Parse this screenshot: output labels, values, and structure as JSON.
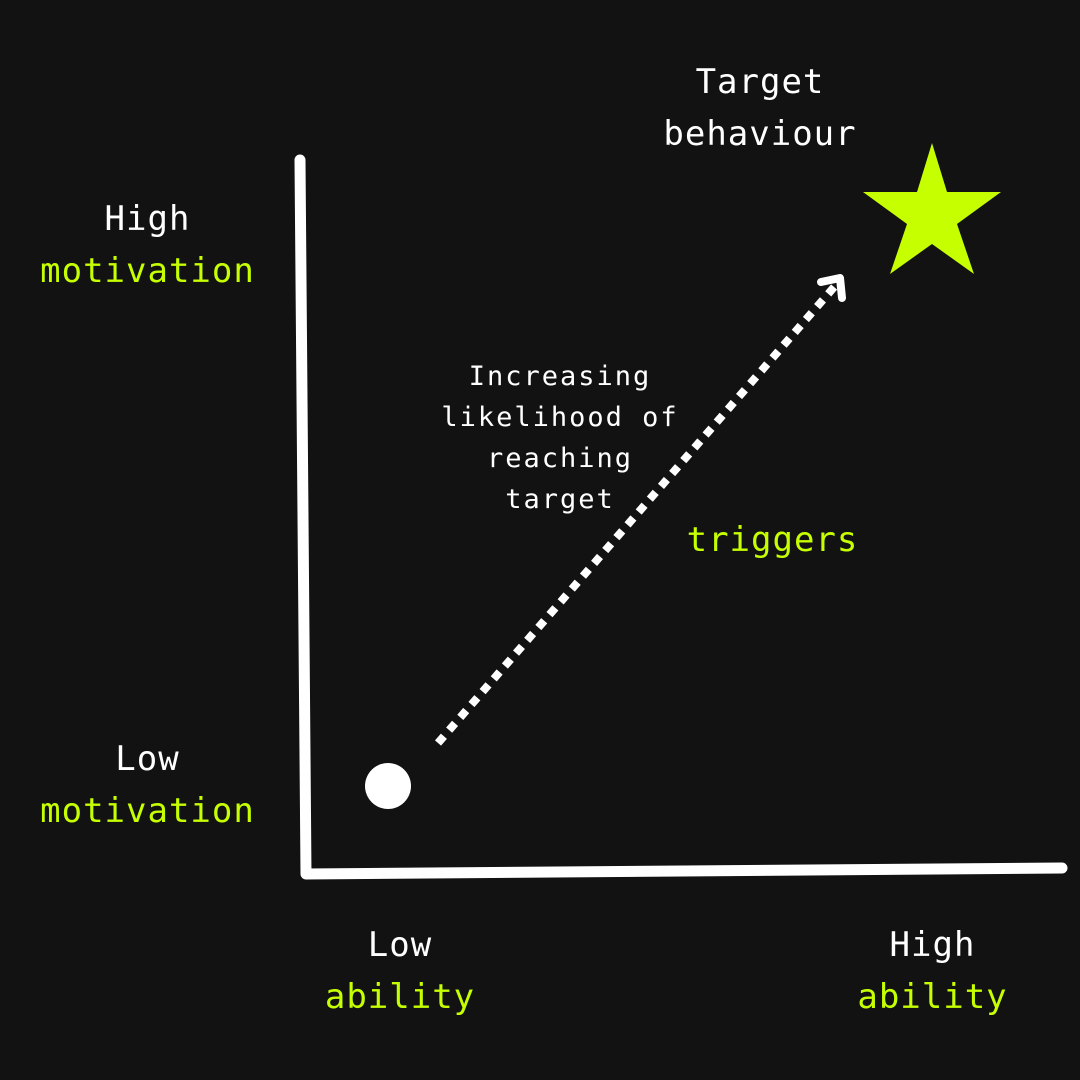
{
  "target": {
    "line1": "Target",
    "line2": "behaviour"
  },
  "y_axis": {
    "high": {
      "qualifier": "High",
      "term": "motivation"
    },
    "low": {
      "qualifier": "Low",
      "term": "motivation"
    }
  },
  "x_axis": {
    "low": {
      "qualifier": "Low",
      "term": "ability"
    },
    "high": {
      "qualifier": "High",
      "term": "ability"
    }
  },
  "arrow_label": {
    "lines": [
      "Increasing",
      "likelihood of",
      "reaching",
      "target"
    ]
  },
  "triggers_label": "triggers",
  "colors": {
    "background": "#121212",
    "foreground": "#ffffff",
    "accent": "#c6ff00"
  },
  "icons": {
    "target": "star-icon",
    "start": "dot-icon",
    "path": "dotted-arrow"
  }
}
